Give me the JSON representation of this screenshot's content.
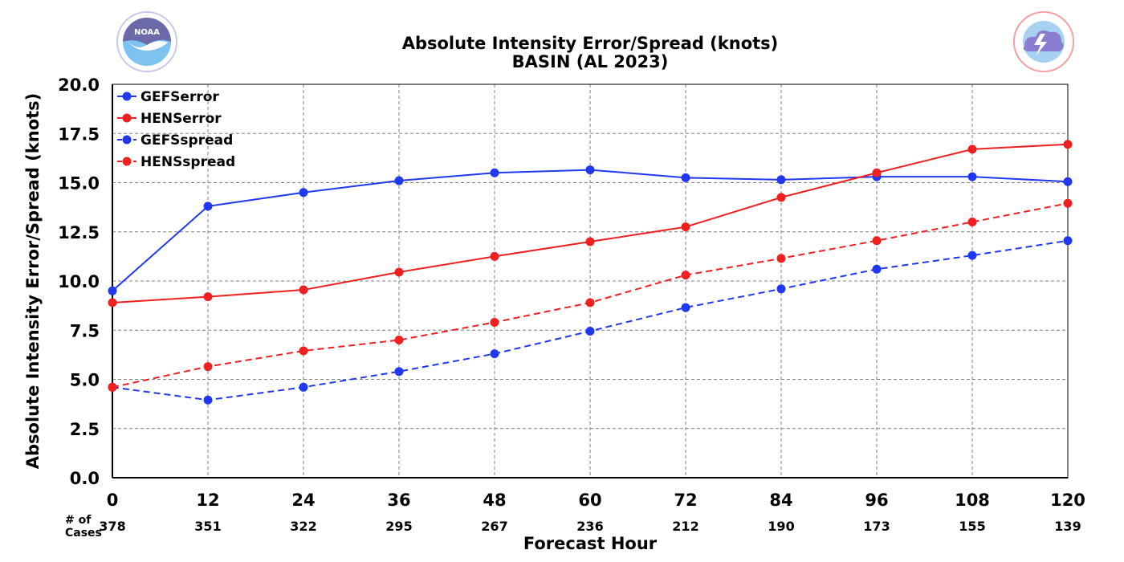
{
  "chart_data": {
    "type": "line",
    "title": "Absolute Intensity Error/Spread (knots)",
    "subtitle": "BASIN (AL 2023)",
    "xlabel": "Forecast Hour",
    "ylabel": "Absolute Intensity Error/Spread (knots)",
    "x": [
      0,
      12,
      24,
      36,
      48,
      60,
      72,
      84,
      96,
      108,
      120
    ],
    "xlim": [
      0,
      120
    ],
    "ylim": [
      0,
      20
    ],
    "yticks": [
      "0.0",
      "2.5",
      "5.0",
      "7.5",
      "10.0",
      "12.5",
      "15.0",
      "17.5",
      "20.0"
    ],
    "grid": true,
    "legend_position": "top-left",
    "series": [
      {
        "name": "GEFSerror",
        "color": "#2038f0",
        "style": "solid",
        "values": [
          9.5,
          13.8,
          14.5,
          15.1,
          15.5,
          15.65,
          15.25,
          15.15,
          15.3,
          15.3,
          15.05
        ]
      },
      {
        "name": "HENSerror",
        "color": "#f02020",
        "style": "solid",
        "values": [
          8.9,
          9.2,
          9.55,
          10.45,
          11.25,
          12.0,
          12.75,
          14.25,
          15.5,
          16.7,
          16.95
        ]
      },
      {
        "name": "GEFSspread",
        "color": "#2038f0",
        "style": "dashed",
        "values": [
          4.6,
          3.95,
          4.6,
          5.4,
          6.3,
          7.45,
          8.65,
          9.6,
          10.6,
          11.3,
          12.05
        ]
      },
      {
        "name": "HENSspread",
        "color": "#f02020",
        "style": "dashed",
        "values": [
          4.6,
          5.65,
          6.45,
          7.0,
          7.9,
          8.9,
          10.3,
          11.15,
          12.05,
          13.0,
          13.95
        ]
      }
    ],
    "cases_label": [
      "# of",
      "Cases"
    ],
    "cases": [
      "378",
      "351",
      "322",
      "295",
      "267",
      "236",
      "212",
      "190",
      "173",
      "155",
      "139"
    ]
  },
  "logos": {
    "left": {
      "name": "NOAA",
      "color": "#8ec8f0"
    },
    "right": {
      "name": "NATIONAL WEATHER SERVICE",
      "color": "#e86060"
    }
  }
}
